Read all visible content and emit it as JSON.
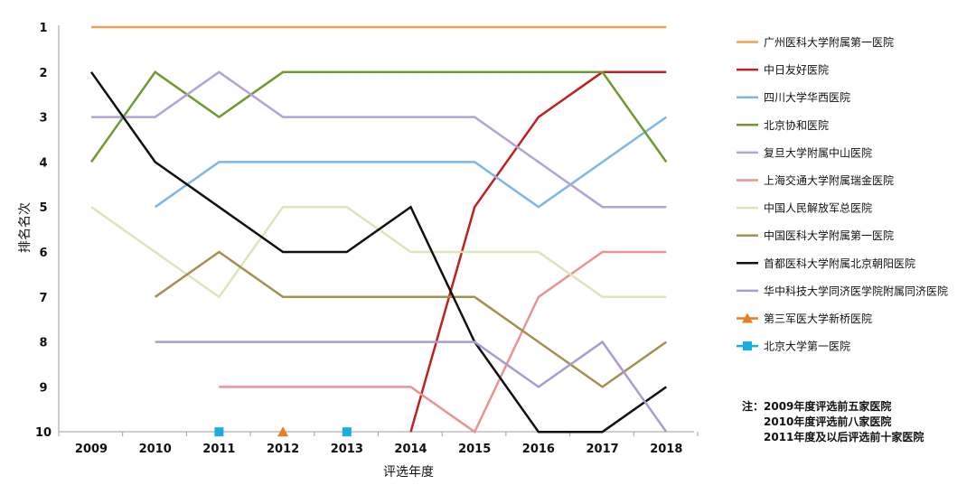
{
  "chart_data": {
    "type": "line",
    "xlabel": "评选年度",
    "ylabel": "排名名次",
    "x": [
      "2009",
      "2010",
      "2011",
      "2012",
      "2013",
      "2014",
      "2015",
      "2016",
      "2017",
      "2018"
    ],
    "y_ticks": [
      "1",
      "2",
      "3",
      "4",
      "5",
      "6",
      "7",
      "8",
      "9",
      "10"
    ],
    "ylim": [
      1,
      10
    ],
    "y_inverted": true,
    "grid": false,
    "legend_position": "right",
    "series": [
      {
        "name": "广州医科大学附属第一医院",
        "color": "#f0a050",
        "marker": "none",
        "values": [
          1,
          1,
          1,
          1,
          1,
          1,
          1,
          1,
          1,
          1
        ]
      },
      {
        "name": "中日友好医院",
        "color": "#c0201f",
        "marker": "none",
        "values": [
          null,
          null,
          null,
          null,
          null,
          10,
          5,
          3,
          2,
          2
        ]
      },
      {
        "name": "四川大学华西医院",
        "color": "#7eb6e6",
        "marker": "none",
        "values": [
          null,
          5,
          4,
          4,
          4,
          4,
          4,
          5,
          4,
          3
        ]
      },
      {
        "name": "北京协和医院",
        "color": "#6f9a2f",
        "marker": "none",
        "values": [
          4,
          2,
          3,
          2,
          2,
          2,
          2,
          2,
          2,
          4
        ]
      },
      {
        "name": "复旦大学附属中山医院",
        "color": "#b3a2d6",
        "marker": "none",
        "values": [
          3,
          3,
          2,
          3,
          3,
          3,
          3,
          4,
          5,
          5
        ]
      },
      {
        "name": "上海交通大学附属瑞金医院",
        "color": "#ea9393",
        "marker": "none",
        "values": [
          null,
          null,
          9,
          9,
          9,
          9,
          10,
          7,
          6,
          6
        ]
      },
      {
        "name": "中国人民解放军总医院",
        "color": "#d9e7b8",
        "marker": "none",
        "values": [
          5,
          6,
          7,
          5,
          5,
          6,
          6,
          6,
          7,
          7
        ]
      },
      {
        "name": "中国医科大学附属第一医院",
        "color": "#a39150",
        "marker": "none",
        "values": [
          null,
          7,
          6,
          7,
          7,
          7,
          7,
          8,
          9,
          8
        ]
      },
      {
        "name": "首都医科大学附属北京朝阳医院",
        "color": "#111111",
        "marker": "none",
        "values": [
          2,
          4,
          5,
          6,
          6,
          5,
          8,
          10,
          10,
          9
        ]
      },
      {
        "name": "华中科技大学同济医学院附属同济医院",
        "color": "#a99bd2",
        "marker": "none",
        "values": [
          null,
          8,
          8,
          8,
          8,
          8,
          8,
          9,
          8,
          10
        ]
      },
      {
        "name": "第三军医大学新桥医院",
        "color": "#e87d22",
        "marker": "triangle",
        "values": [
          null,
          null,
          null,
          10,
          null,
          null,
          null,
          null,
          null,
          null
        ]
      },
      {
        "name": "北京大学第一医院",
        "color": "#19aede",
        "marker": "square",
        "values": [
          null,
          null,
          10,
          null,
          10,
          null,
          null,
          null,
          null,
          null
        ]
      }
    ],
    "annotation": [
      "注：2009年度评选前五家医院",
      "2010年度评选前八家医院",
      "2011年度及以后评选前十家医院"
    ]
  }
}
